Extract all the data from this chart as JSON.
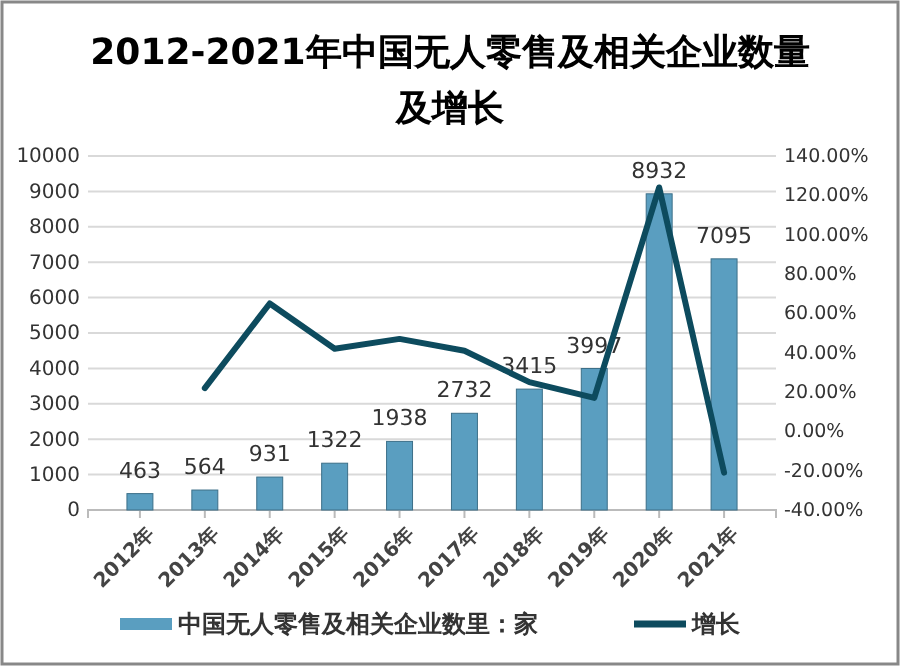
{
  "chart_data": {
    "type": "bar",
    "title": "2012-2021年中国无人零售及相关企业数量及增长",
    "categories": [
      "2012年",
      "2013年",
      "2014年",
      "2015年",
      "2016年",
      "2017年",
      "2018年",
      "2019年",
      "2020年",
      "2021年"
    ],
    "series": [
      {
        "name": "中国无人零售及相关企业数里：家",
        "color": "#5a9ec0",
        "values": [
          463,
          564,
          931,
          1322,
          1938,
          2732,
          3415,
          3997,
          8932,
          7095
        ],
        "value_labels": [
          "463",
          "564",
          "931",
          "1322",
          "1938",
          "2732",
          "3415",
          "3997",
          "8932",
          "7095"
        ]
      },
      {
        "name": "增长",
        "type": "line",
        "axis": "y2",
        "color": "#0d4b5e",
        "values": [
          null,
          22,
          65,
          42,
          47,
          41,
          25,
          17,
          124,
          -21
        ]
      }
    ],
    "ylim": [
      0,
      10000
    ],
    "yticks": [
      0,
      1000,
      2000,
      3000,
      4000,
      5000,
      6000,
      7000,
      8000,
      9000,
      10000
    ],
    "y2lim": [
      -40,
      140
    ],
    "y2ticks": [
      {
        "value": -40,
        "label": "-40.00%"
      },
      {
        "value": -20,
        "label": "-20.00%"
      },
      {
        "value": 0,
        "label": "0.00%"
      },
      {
        "value": 20,
        "label": "20.00%"
      },
      {
        "value": 40,
        "label": "40.00%"
      },
      {
        "value": 60,
        "label": "60.00%"
      },
      {
        "value": 80,
        "label": "80.00%"
      },
      {
        "value": 100,
        "label": "100.00%"
      },
      {
        "value": 120,
        "label": "120.00%"
      },
      {
        "value": 140,
        "label": "140.00%"
      }
    ],
    "grid": "y",
    "legend": "bottom"
  }
}
